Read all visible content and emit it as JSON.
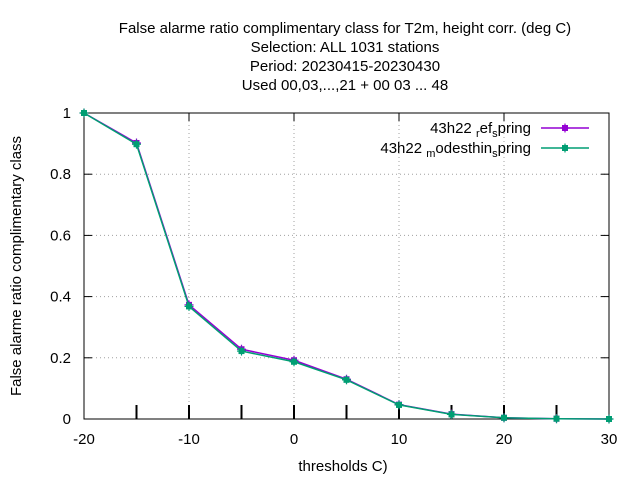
{
  "chart_data": {
    "type": "line",
    "title_lines": [
      "False alarme ratio complimentary class  for T2m, height corr. (deg C)",
      "Selection: ALL   1031 stations",
      "Period: 20230415-20230430",
      "Used  00,03,...,21  + 00 03 ... 48"
    ],
    "xlabel": "thresholds C)",
    "ylabel": "False alarme ratio complimentary class",
    "xlim": [
      -20,
      30
    ],
    "ylim": [
      0,
      1
    ],
    "x_ticks": [
      "-20",
      "-10",
      "0",
      "10",
      "20",
      "30"
    ],
    "x_tick_values": [
      -20,
      -10,
      0,
      10,
      20,
      30
    ],
    "y_ticks": [
      "0",
      "0.2",
      "0.4",
      "0.6",
      "0.8",
      "1"
    ],
    "y_tick_values": [
      0,
      0.2,
      0.4,
      0.6,
      0.8,
      1
    ],
    "minor_x_ticks": [
      -15,
      -10,
      -5,
      0,
      5,
      10,
      15,
      20,
      25
    ],
    "grid": true,
    "legend_position": "top-right",
    "x": [
      -20,
      -15,
      -10,
      -5,
      0,
      5,
      10,
      15,
      20,
      25,
      30
    ],
    "series": [
      {
        "legend_main": "43h22",
        "legend_parts": [
          {
            "text": "r",
            "sub": true
          },
          {
            "text": "ef",
            "sub": false
          },
          {
            "text": "s",
            "sub": true
          },
          {
            "text": "pring",
            "sub": false
          }
        ],
        "color": "#9400d3",
        "values": [
          1.0,
          0.902,
          0.373,
          0.228,
          0.192,
          0.13,
          0.047,
          0.016,
          0.004,
          0.001,
          0.0
        ]
      },
      {
        "legend_main": "43h22",
        "legend_parts": [
          {
            "text": "m",
            "sub": true
          },
          {
            "text": "odesthin",
            "sub": false
          },
          {
            "text": "s",
            "sub": true
          },
          {
            "text": "pring",
            "sub": false
          }
        ],
        "color": "#009e73",
        "values": [
          1.0,
          0.898,
          0.368,
          0.222,
          0.187,
          0.128,
          0.046,
          0.015,
          0.004,
          0.001,
          0.0
        ]
      }
    ]
  }
}
